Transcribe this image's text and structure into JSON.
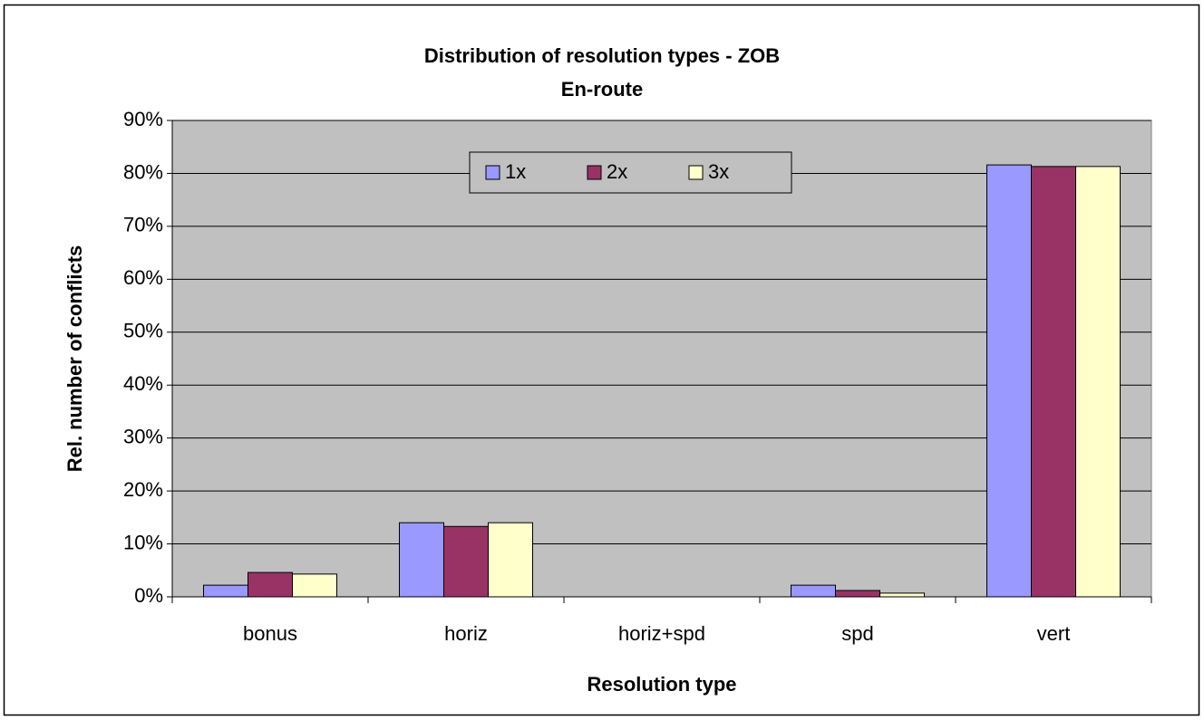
{
  "chart_data": {
    "type": "bar",
    "title": "Distribution of resolution types - ZOB",
    "subtitle": "En-route",
    "x_label": "Resolution type",
    "y_label": "Rel. number of conflicts",
    "categories": [
      "bonus",
      "horiz",
      "horiz+spd",
      "spd",
      "vert"
    ],
    "series": [
      {
        "name": "1x",
        "color": "#9999ff",
        "values": [
          2.2,
          14.0,
          0,
          2.2,
          81.6
        ]
      },
      {
        "name": "2x",
        "color": "#993366",
        "values": [
          4.6,
          13.3,
          0,
          1.2,
          81.3
        ]
      },
      {
        "name": "3x",
        "color": "#ffffcc",
        "values": [
          4.3,
          14.0,
          0,
          0.7,
          81.3
        ]
      }
    ],
    "ylim": [
      0,
      90
    ],
    "yticks": [
      {
        "value": 0,
        "label": "0%"
      },
      {
        "value": 10,
        "label": "10%"
      },
      {
        "value": 20,
        "label": "20%"
      },
      {
        "value": 30,
        "label": "30%"
      },
      {
        "value": 40,
        "label": "40%"
      },
      {
        "value": 50,
        "label": "50%"
      },
      {
        "value": 60,
        "label": "60%"
      },
      {
        "value": 70,
        "label": "70%"
      },
      {
        "value": 80,
        "label": "80%"
      },
      {
        "value": 90,
        "label": "90%"
      }
    ],
    "grid": true,
    "legend": "top",
    "plot_background": "#c0c0c0"
  }
}
